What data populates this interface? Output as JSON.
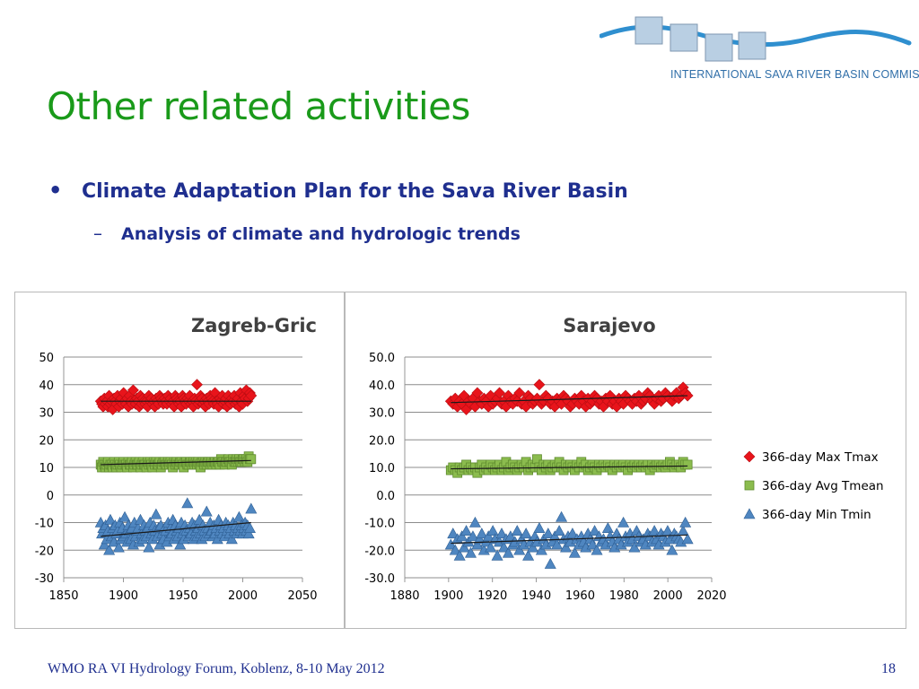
{
  "slide": {
    "title": "Other related activities",
    "bullet": "Climate Adaptation Plan for the Sava River Basin",
    "sub_bullet": "Analysis of climate and hydrologic trends",
    "bullet_marker": "•",
    "dash_marker": "–",
    "footer": "WMO RA VI Hydrology Forum, Koblenz, 8-10 May 2012",
    "page_number": "18"
  },
  "logo": {
    "text": "INTERNATIONAL SAVA RIVER BASIN COMMISSION",
    "colors": {
      "river": "#2f8fcf",
      "squares": "#b9cfe3",
      "square_border": "#7f97b0"
    }
  },
  "colors": {
    "title": "#1a9a1a",
    "text": "#1f2f8f",
    "max": "#e8141b",
    "avg": "#8bbc4e",
    "min": "#4f86c0"
  },
  "chart_data": [
    {
      "type": "scatter",
      "title": "Zagreb-Gric",
      "xlim": [
        1850,
        2050
      ],
      "ylim": [
        -30,
        50
      ],
      "x_ticks": [
        "1850",
        "1900",
        "1950",
        "2000",
        "2050"
      ],
      "x_tick_values": [
        1850,
        1900,
        1950,
        2000,
        2050
      ],
      "y_ticks": [
        "50",
        "40",
        "30",
        "20",
        "10",
        "0",
        "-10",
        "-20",
        "-30"
      ],
      "y_tick_values": [
        50,
        40,
        30,
        20,
        10,
        0,
        -10,
        -20,
        -30
      ],
      "x_start": 1881,
      "x_end": 2007,
      "series": [
        {
          "key": "max",
          "marker": "diamond",
          "trend": [
            34,
            34
          ],
          "values": [
            34,
            33,
            32,
            35,
            33,
            34,
            32,
            36,
            33,
            34,
            31,
            35,
            34,
            33,
            36,
            32,
            34,
            35,
            33,
            37,
            34,
            33,
            35,
            32,
            36,
            34,
            33,
            38,
            34,
            33,
            35,
            34,
            32,
            36,
            33,
            35,
            34,
            33,
            34,
            32,
            36,
            34,
            35,
            33,
            34,
            32,
            35,
            34,
            33,
            36,
            35,
            34,
            33,
            35,
            34,
            33,
            36,
            34,
            35,
            33,
            34,
            32,
            36,
            35,
            34,
            33,
            34,
            32,
            36,
            35,
            34,
            33,
            35,
            34,
            36,
            33,
            34,
            32,
            35,
            34,
            40,
            33,
            34,
            36,
            35,
            33,
            34,
            32,
            35,
            34,
            33,
            36,
            35,
            34,
            33,
            37,
            34,
            33,
            32,
            35,
            34,
            36,
            33,
            34,
            35,
            32,
            36,
            34,
            33,
            35,
            34,
            36,
            33,
            34,
            35,
            32,
            37,
            34,
            33,
            36,
            35,
            38,
            34,
            35,
            37,
            36
          ]
        },
        {
          "key": "avg",
          "marker": "square",
          "trend": [
            11,
            12.5
          ],
          "values": [
            11,
            10,
            12,
            11,
            10,
            11,
            12,
            10,
            11,
            11,
            10,
            12,
            11,
            10,
            11,
            12,
            11,
            10,
            11,
            12,
            11,
            11,
            10,
            12,
            11,
            11,
            12,
            10,
            11,
            12,
            11,
            11,
            12,
            10,
            11,
            12,
            11,
            11,
            10,
            12,
            11,
            12,
            11,
            10,
            12,
            11,
            12,
            11,
            11,
            12,
            10,
            11,
            12,
            12,
            11,
            11,
            12,
            11,
            12,
            11,
            10,
            12,
            11,
            12,
            11,
            11,
            12,
            12,
            11,
            10,
            12,
            12,
            11,
            11,
            12,
            12,
            11,
            12,
            11,
            12,
            11,
            12,
            11,
            10,
            12,
            12,
            11,
            12,
            11,
            12,
            12,
            11,
            12,
            11,
            12,
            12,
            11,
            12,
            12,
            11,
            13,
            12,
            12,
            11,
            12,
            12,
            13,
            12,
            12,
            11,
            13,
            12,
            12,
            13,
            12,
            13,
            12,
            12,
            13,
            13,
            12,
            13,
            12,
            14,
            13,
            13
          ]
        },
        {
          "key": "min",
          "marker": "triangle",
          "trend": [
            -15,
            -10
          ],
          "values": [
            -10,
            -14,
            -12,
            -18,
            -11,
            -16,
            -13,
            -20,
            -9,
            -15,
            -12,
            -17,
            -11,
            -14,
            -13,
            -19,
            -10,
            -16,
            -12,
            -15,
            -8,
            -14,
            -17,
            -11,
            -13,
            -16,
            -12,
            -18,
            -10,
            -15,
            -13,
            -12,
            -17,
            -9,
            -14,
            -16,
            -11,
            -13,
            -15,
            -12,
            -19,
            -10,
            -14,
            -16,
            -11,
            -13,
            -7,
            -15,
            -12,
            -18,
            -11,
            -14,
            -16,
            -12,
            -13,
            -17,
            -10,
            -15,
            -12,
            -14,
            -9,
            -16,
            -11,
            -13,
            -15,
            -12,
            -18,
            -10,
            -14,
            -16,
            -11,
            -13,
            -3,
            -15,
            -12,
            -14,
            -10,
            -16,
            -11,
            -13,
            -15,
            -12,
            -9,
            -14,
            -16,
            -11,
            -13,
            -15,
            -6,
            -12,
            -14,
            -10,
            -13,
            -15,
            -11,
            -14,
            -12,
            -16,
            -9,
            -13,
            -11,
            -14,
            -12,
            -15,
            -10,
            -13,
            -11,
            -14,
            -12,
            -16,
            -10,
            -13,
            -11,
            -14,
            -12,
            -8,
            -13,
            -11,
            -14,
            -12,
            -10,
            -13,
            -11,
            -14,
            -12,
            -5
          ]
        }
      ]
    },
    {
      "type": "scatter",
      "title": "Sarajevo",
      "xlim": [
        1880,
        2020
      ],
      "ylim": [
        -30,
        50
      ],
      "x_ticks": [
        "1880",
        "1900",
        "1920",
        "1940",
        "1960",
        "1980",
        "2000",
        "2020"
      ],
      "x_tick_values": [
        1880,
        1900,
        1920,
        1940,
        1960,
        1980,
        2000,
        2020
      ],
      "y_ticks": [
        "50.0",
        "40.0",
        "30.0",
        "20.0",
        "10.0",
        "0.0",
        "-10.0",
        "-20.0",
        "-30.0"
      ],
      "y_tick_values": [
        50,
        40,
        30,
        20,
        10,
        0,
        -10,
        -20,
        -30
      ],
      "x_start": 1901,
      "x_end": 2009,
      "series": [
        {
          "key": "max",
          "name": "366-day Max Tmax",
          "marker": "diamond",
          "trend": [
            33.5,
            36
          ],
          "values": [
            34,
            33,
            35,
            32,
            34,
            33,
            36,
            31,
            34,
            33,
            35,
            32,
            37,
            34,
            33,
            35,
            34,
            32,
            36,
            33,
            34,
            35,
            37,
            33,
            34,
            32,
            36,
            34,
            33,
            35,
            34,
            37,
            33,
            34,
            32,
            36,
            35,
            33,
            34,
            35,
            40,
            33,
            34,
            36,
            35,
            33,
            34,
            32,
            35,
            34,
            33,
            36,
            35,
            34,
            32,
            33,
            35,
            34,
            33,
            36,
            34,
            32,
            35,
            33,
            34,
            36,
            35,
            33,
            34,
            32,
            35,
            34,
            36,
            33,
            34,
            32,
            35,
            34,
            33,
            36,
            35,
            34,
            33,
            35,
            34,
            36,
            33,
            34,
            35,
            37,
            36,
            34,
            33,
            35,
            36,
            34,
            35,
            37,
            36,
            35,
            34,
            36,
            37,
            35,
            36,
            39,
            37,
            36
          ]
        },
        {
          "key": "avg",
          "name": "366-day Avg Tmean",
          "marker": "square",
          "trend": [
            9.5,
            10.5
          ],
          "values": [
            9,
            10,
            9,
            8,
            10,
            9,
            10,
            11,
            9,
            10,
            9,
            10,
            8,
            10,
            11,
            9,
            10,
            9,
            11,
            10,
            9,
            10,
            11,
            9,
            10,
            12,
            9,
            10,
            11,
            10,
            9,
            10,
            11,
            10,
            12,
            9,
            10,
            11,
            10,
            13,
            10,
            9,
            11,
            10,
            11,
            9,
            10,
            11,
            10,
            12,
            10,
            9,
            11,
            10,
            11,
            10,
            9,
            11,
            10,
            12,
            10,
            11,
            9,
            10,
            11,
            10,
            9,
            11,
            10,
            11,
            10,
            11,
            10,
            9,
            11,
            10,
            11,
            10,
            11,
            10,
            9,
            11,
            10,
            11,
            10,
            11,
            10,
            11,
            10,
            11,
            9,
            11,
            10,
            11,
            11,
            10,
            11,
            10,
            11,
            12,
            11,
            10,
            11,
            11,
            10,
            12,
            11,
            11
          ]
        },
        {
          "key": "min",
          "name": "366-day Min Tmin",
          "marker": "triangle",
          "trend": [
            -17.5,
            -14.5
          ],
          "values": [
            -18,
            -14,
            -20,
            -16,
            -22,
            -15,
            -19,
            -13,
            -17,
            -21,
            -15,
            -10,
            -18,
            -16,
            -14,
            -20,
            -17,
            -15,
            -19,
            -13,
            -16,
            -22,
            -17,
            -14,
            -19,
            -16,
            -21,
            -15,
            -18,
            -17,
            -13,
            -20,
            -16,
            -18,
            -14,
            -22,
            -17,
            -19,
            -15,
            -17,
            -12,
            -20,
            -16,
            -18,
            -14,
            -25,
            -17,
            -15,
            -18,
            -13,
            -8,
            -16,
            -19,
            -15,
            -17,
            -14,
            -21,
            -16,
            -18,
            -15,
            -17,
            -19,
            -14,
            -16,
            -18,
            -13,
            -20,
            -15,
            -17,
            -16,
            -18,
            -12,
            -15,
            -17,
            -19,
            -14,
            -16,
            -18,
            -10,
            -15,
            -17,
            -14,
            -16,
            -19,
            -13,
            -15,
            -17,
            -16,
            -18,
            -14,
            -15,
            -17,
            -13,
            -16,
            -18,
            -14,
            -15,
            -17,
            -13,
            -16,
            -20,
            -14,
            -15,
            -16,
            -17,
            -13,
            -10,
            -16
          ]
        }
      ],
      "legend": "right"
    }
  ]
}
